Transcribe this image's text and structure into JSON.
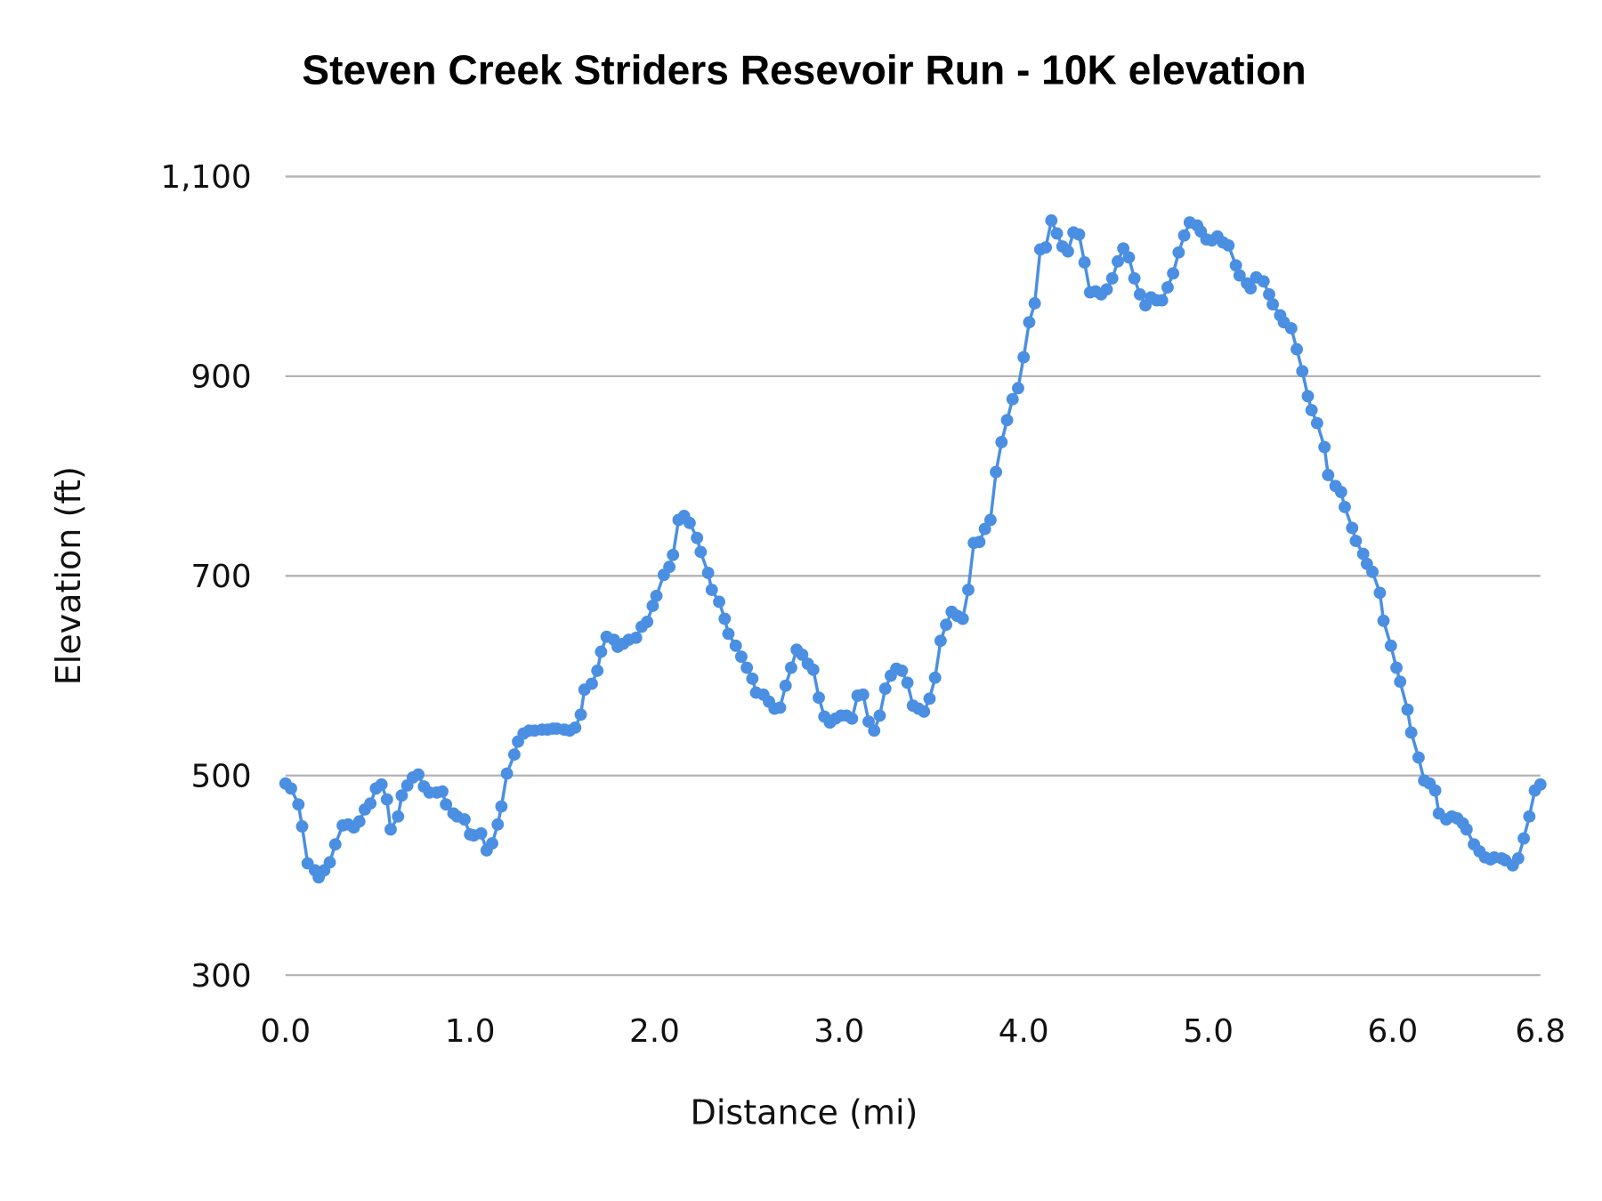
{
  "chart_data": {
    "type": "line",
    "title": "Steven Creek Striders Resevoir Run - 10K elevation",
    "xlabel": "Distance (mi)",
    "ylabel": "Elevation (ft)",
    "xlim": [
      0,
      6.8
    ],
    "ylim": [
      300,
      1100
    ],
    "x_ticks": [
      "0.0",
      "1.0",
      "2.0",
      "3.0",
      "4.0",
      "5.0",
      "6.0",
      "6.8"
    ],
    "x_tick_values": [
      0,
      1,
      2,
      3,
      4,
      5,
      6,
      6.8
    ],
    "y_ticks": [
      "300",
      "500",
      "700",
      "900",
      "1,100"
    ],
    "y_tick_values": [
      300,
      500,
      700,
      900,
      1100
    ],
    "grid": true,
    "markers": true,
    "color": "#4a8fe2",
    "series": [
      {
        "x": [
          0.0,
          0.03,
          0.07,
          0.09,
          0.12,
          0.16,
          0.18,
          0.21,
          0.24,
          0.27,
          0.31,
          0.34,
          0.37,
          0.4,
          0.43,
          0.46,
          0.49,
          0.52,
          0.55,
          0.57,
          0.61,
          0.63,
          0.66,
          0.69,
          0.72,
          0.75,
          0.78,
          0.82,
          0.85,
          0.87,
          0.91,
          0.93,
          0.97,
          1.0,
          1.02,
          1.06,
          1.09,
          1.12,
          1.15,
          1.17,
          1.2,
          1.24,
          1.26,
          1.29,
          1.32,
          1.35,
          1.39,
          1.42,
          1.45,
          1.47,
          1.51,
          1.54,
          1.57,
          1.6,
          1.62,
          1.66,
          1.69,
          1.71,
          1.74,
          1.78,
          1.8,
          1.83,
          1.86,
          1.9,
          1.93,
          1.96,
          1.99,
          2.01,
          2.05,
          2.08,
          2.1,
          2.13,
          2.16,
          2.19,
          2.23,
          2.25,
          2.29,
          2.31,
          2.35,
          2.38,
          2.4,
          2.44,
          2.47,
          2.5,
          2.53,
          2.55,
          2.59,
          2.62,
          2.65,
          2.68,
          2.71,
          2.74,
          2.77,
          2.8,
          2.83,
          2.86,
          2.89,
          2.92,
          2.95,
          2.98,
          3.01,
          3.04,
          3.07,
          3.1,
          3.13,
          3.16,
          3.19,
          3.22,
          3.25,
          3.28,
          3.31,
          3.34,
          3.37,
          3.4,
          3.43,
          3.46,
          3.49,
          3.52,
          3.55,
          3.58,
          3.61,
          3.64,
          3.67,
          3.7,
          3.73,
          3.76,
          3.79,
          3.82,
          3.85,
          3.88,
          3.91,
          3.94,
          3.97,
          4.0,
          4.03,
          4.06,
          4.09,
          4.12,
          4.15,
          4.18,
          4.21,
          4.24,
          4.27,
          4.3,
          4.33,
          4.36,
          4.39,
          4.42,
          4.45,
          4.48,
          4.51,
          4.54,
          4.57,
          4.6,
          4.63,
          4.66,
          4.69,
          4.72,
          4.75,
          4.78,
          4.81,
          4.84,
          4.87,
          4.9,
          4.94,
          4.96,
          4.99,
          5.02,
          5.05,
          5.08,
          5.11,
          5.15,
          5.17,
          5.21,
          5.23,
          5.26,
          5.3,
          5.33,
          5.35,
          5.39,
          5.41,
          5.45,
          5.48,
          5.51,
          5.54,
          5.56,
          5.59,
          5.63,
          5.65,
          5.69,
          5.72,
          5.74,
          5.78,
          5.8,
          5.84,
          5.86,
          5.89,
          5.93,
          5.95,
          5.99,
          6.02,
          6.04,
          6.08,
          6.1,
          6.14,
          6.17,
          6.2,
          6.23,
          6.25,
          6.29,
          6.32,
          6.35,
          6.38,
          6.4,
          6.44,
          6.47,
          6.5,
          6.53,
          6.55,
          6.59,
          6.61,
          6.65,
          6.68,
          6.71,
          6.74,
          6.77,
          6.8
        ],
        "y": [
          492,
          487,
          471,
          449,
          412,
          405,
          398,
          405,
          413,
          431,
          450,
          451,
          448,
          454,
          466,
          472,
          487,
          491,
          476,
          446,
          459,
          480,
          490,
          498,
          501,
          489,
          483,
          483,
          484,
          471,
          462,
          459,
          456,
          441,
          440,
          442,
          425,
          432,
          451,
          469,
          502,
          521,
          534,
          542,
          545,
          545,
          546,
          546,
          547,
          547,
          546,
          545,
          548,
          561,
          586,
          592,
          605,
          624,
          639,
          636,
          629,
          632,
          636,
          638,
          649,
          654,
          670,
          680,
          701,
          709,
          721,
          756,
          760,
          753,
          738,
          724,
          703,
          686,
          674,
          657,
          642,
          630,
          619,
          608,
          597,
          583,
          581,
          574,
          567,
          568,
          590,
          608,
          626,
          621,
          612,
          606,
          578,
          559,
          553,
          557,
          560,
          560,
          557,
          580,
          581,
          554,
          545,
          560,
          587,
          600,
          607,
          605,
          593,
          570,
          567,
          564,
          577,
          598,
          635,
          651,
          664,
          660,
          657,
          686,
          733,
          734,
          747,
          756,
          804,
          834,
          856,
          877,
          888,
          919,
          954,
          973,
          1027,
          1029,
          1056,
          1043,
          1030,
          1025,
          1044,
          1042,
          1014,
          984,
          985,
          982,
          987,
          998,
          1015,
          1028,
          1019,
          998,
          982,
          971,
          979,
          976,
          976,
          989,
          1003,
          1024,
          1041,
          1054,
          1051,
          1045,
          1037,
          1036,
          1040,
          1034,
          1031,
          1011,
          1001,
          993,
          988,
          999,
          995,
          982,
          972,
          961,
          954,
          948,
          927,
          905,
          880,
          866,
          853,
          829,
          801,
          790,
          784,
          769,
          748,
          735,
          722,
          712,
          704,
          683,
          655,
          630,
          608,
          594,
          566,
          543,
          518,
          495,
          492,
          485,
          462,
          456,
          459,
          457,
          452,
          446,
          431,
          424,
          418,
          416,
          418,
          417,
          415,
          410,
          417,
          437,
          459,
          485,
          491
        ]
      }
    ]
  }
}
